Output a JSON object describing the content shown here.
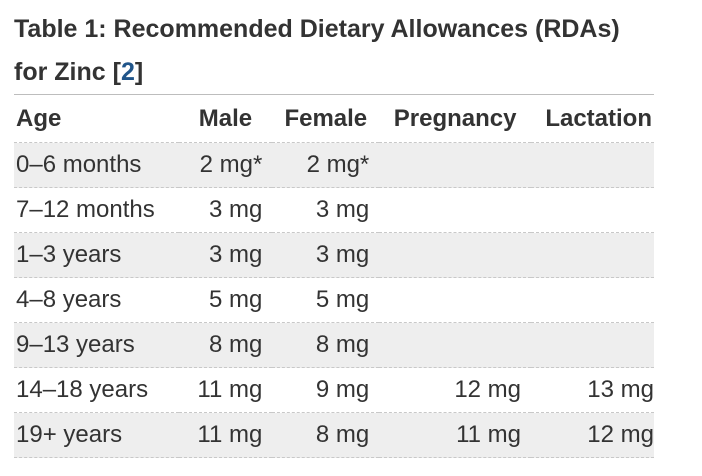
{
  "caption": {
    "title": "Table 1: Recommended Dietary Allowances (RDAs) for Zinc [",
    "ref": "2",
    "close": "]"
  },
  "table": {
    "headers": [
      "Age",
      "Male",
      "Female",
      "Pregnancy",
      "Lactation"
    ],
    "rows": [
      {
        "age": "0–6 months",
        "male": "2 mg*",
        "female": "2 mg*",
        "pregnancy": "",
        "lactation": ""
      },
      {
        "age": "7–12 months",
        "male": "3 mg",
        "female": "3 mg",
        "pregnancy": "",
        "lactation": ""
      },
      {
        "age": "1–3 years",
        "male": "3 mg",
        "female": "3 mg",
        "pregnancy": "",
        "lactation": ""
      },
      {
        "age": "4–8 years",
        "male": "5 mg",
        "female": "5 mg",
        "pregnancy": "",
        "lactation": ""
      },
      {
        "age": "9–13 years",
        "male": "8 mg",
        "female": "8 mg",
        "pregnancy": "",
        "lactation": ""
      },
      {
        "age": "14–18 years",
        "male": "11 mg",
        "female": "9 mg",
        "pregnancy": "12 mg",
        "lactation": "13 mg"
      },
      {
        "age": "19+ years",
        "male": "11 mg",
        "female": "8 mg",
        "pregnancy": "11 mg",
        "lactation": "12 mg"
      }
    ]
  },
  "colors": {
    "text": "#333333",
    "link": "#20558a",
    "row_shade": "#eeeeee",
    "rule": "#bdbdbd"
  }
}
